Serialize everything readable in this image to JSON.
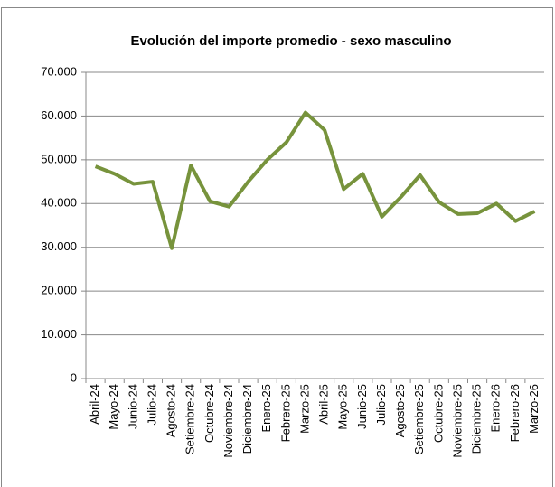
{
  "chart_data": {
    "type": "line",
    "title": "Evolución del importe promedio - sexo masculino",
    "categories": [
      "Abril-24",
      "Mayo-24",
      "Junio-24",
      "Julio-24",
      "Agosto-24",
      "Setiembre-24",
      "Octubre-24",
      "Noviembre-24",
      "Diciembre-24",
      "Enero-25",
      "Febrero-25",
      "Marzo-25",
      "Abril-25",
      "Mayo-25",
      "Junio-25",
      "Julio-25",
      "Agosto-25",
      "Setiembre-25",
      "Octubre-25",
      "Noviembre-25",
      "Diciembre-25",
      "Enero-26",
      "Febrero-26",
      "Marzo-26"
    ],
    "series": [
      {
        "name": "sexo masculino",
        "color": "#77933c",
        "values": [
          48500,
          46800,
          44500,
          45000,
          29800,
          48700,
          40500,
          39300,
          45000,
          50000,
          54000,
          60800,
          56800,
          43300,
          46800,
          37000,
          41500,
          46500,
          40300,
          37600,
          37800,
          40000,
          36000,
          38200
        ]
      }
    ],
    "ylim": [
      0,
      70000
    ],
    "yticks": [
      0,
      {
        "value": 10000,
        "label": "10.000"
      },
      {
        "value": 20000,
        "label": "20.000"
      },
      {
        "value": 30000,
        "label": "30.000"
      },
      {
        "value": 40000,
        "label": "40.000"
      },
      {
        "value": 50000,
        "label": "50.000"
      },
      {
        "value": 60000,
        "label": "60.000"
      },
      {
        "value": 70000,
        "label": "70.000"
      }
    ],
    "grid": true
  }
}
